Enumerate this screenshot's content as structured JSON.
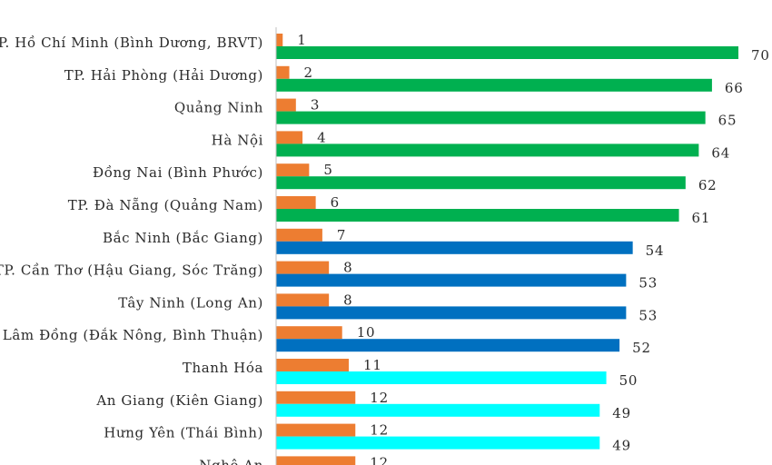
{
  "chart_data": {
    "type": "bar",
    "orientation": "horizontal",
    "grid": false,
    "categories": [
      "TP. Hồ Chí Minh (Bình Dương, BRVT)",
      "TP. Hải Phòng (Hải Dương)",
      "Quảng Ninh",
      "Hà Nội",
      "Đồng Nai (Bình Phước)",
      "TP. Đà Nẵng (Quảng Nam)",
      "Bắc Ninh (Bắc Giang)",
      "TP. Cần Thơ (Hậu Giang, Sóc Trăng)",
      "Tây Ninh (Long An)",
      "Lâm Đồng (Đắk Nông, Bình Thuận)",
      "Thanh Hóa",
      "An Giang (Kiên Giang)",
      "Hưng Yên (Thái Bình)",
      "Nghệ An"
    ],
    "series": [
      {
        "color": "#ed7d31",
        "values": [
          1,
          2,
          3,
          4,
          5,
          6,
          7,
          8,
          8,
          10,
          11,
          12,
          12,
          12
        ]
      },
      {
        "values": [
          70,
          66,
          65,
          64,
          62,
          61,
          54,
          53,
          53,
          52,
          50,
          49,
          49,
          null
        ],
        "colors": [
          "#00b050",
          "#00b050",
          "#00b050",
          "#00b050",
          "#00b050",
          "#00b050",
          "#0070c0",
          "#0070c0",
          "#0070c0",
          "#0070c0",
          "#00ffff",
          "#00ffff",
          "#00ffff",
          "#00ffff"
        ]
      }
    ],
    "axis_color": "#bfbfbf"
  }
}
